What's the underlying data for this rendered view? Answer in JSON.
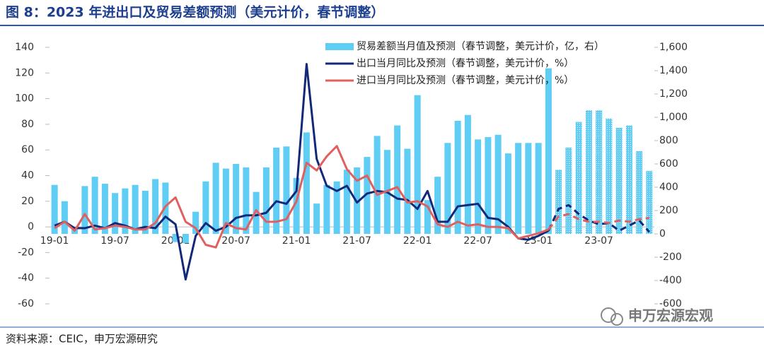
{
  "chart_data": {
    "type": "bar-line",
    "title": "图 8：2023 年进出口及贸易差额预测（美元计价，春节调整）",
    "source": "资料来源：CEIC，申万宏源研究",
    "watermark": "申万宏源宏观",
    "categories": [
      "19-01",
      null,
      null,
      null,
      null,
      null,
      "19-07",
      null,
      null,
      null,
      null,
      null,
      "20-01",
      null,
      null,
      null,
      null,
      null,
      "20-07",
      null,
      null,
      null,
      null,
      null,
      "21-01",
      null,
      null,
      null,
      null,
      null,
      "21-07",
      null,
      null,
      null,
      null,
      null,
      "22-01",
      null,
      null,
      null,
      null,
      null,
      "22-07",
      null,
      null,
      null,
      null,
      null,
      "23-01",
      null,
      null,
      null,
      null,
      null,
      "23-07",
      null,
      null,
      null,
      null,
      null
    ],
    "forecast_from_index": 49,
    "ylim": [
      -60,
      140
    ],
    "yticks": [
      -60,
      -40,
      -20,
      0,
      20,
      40,
      60,
      80,
      100,
      120,
      140
    ],
    "y2lim": [
      -600,
      1600
    ],
    "y2ticks": [
      -600,
      -400,
      -200,
      0,
      200,
      400,
      600,
      800,
      {
        "value": 1000,
        "label": "1,000"
      },
      {
        "value": 1200,
        "label": "1,200"
      },
      {
        "value": 1400,
        "label": "1,400"
      },
      {
        "value": 1600,
        "label": "1,600"
      }
    ],
    "series": [
      {
        "name": "贸易差额当月值及预测（春节调整，美元计价，亿，右）",
        "type": "bar",
        "axis": "y2",
        "color": "#5fcdf4",
        "values": [
          420,
          280,
          60,
          410,
          490,
          430,
          350,
          390,
          420,
          370,
          470,
          440,
          -70,
          -80,
          190,
          450,
          610,
          560,
          600,
          570,
          360,
          570,
          740,
          750,
          480,
          870,
          260,
          420,
          450,
          550,
          570,
          660,
          840,
          720,
          930,
          730,
          1190,
          290,
          490,
          780,
          970,
          1020,
          810,
          830,
          850,
          690,
          780,
          780,
          780,
          1420,
          550,
          740,
          960,
          1060,
          1060,
          990,
          910,
          930,
          710,
          540
        ]
      },
      {
        "name": "出口当月同比及预测（春节调整，美元计价，%）",
        "type": "line",
        "color": "#12297a",
        "values": [
          1,
          4,
          -1,
          -1,
          1,
          -1,
          3,
          1,
          -2,
          0,
          -1,
          8,
          2,
          -41,
          -7,
          3,
          -3,
          0,
          7,
          9,
          9,
          11,
          20,
          18,
          28,
          127,
          53,
          32,
          28,
          32,
          19,
          26,
          28,
          27,
          22,
          21,
          14,
          28,
          4,
          4,
          16,
          17,
          18,
          7,
          6,
          0,
          -9,
          -10,
          -7,
          -3,
          14,
          17,
          10,
          5,
          2,
          3,
          -3,
          1,
          5,
          -4
        ]
      },
      {
        "name": "进口当月同比及预测（春节调整，美元计价，%）",
        "type": "line",
        "color": "#e0605f",
        "values": [
          -1,
          4,
          -3,
          10,
          -2,
          -1,
          1,
          0,
          -2,
          -2,
          3,
          16,
          23,
          4,
          -1,
          -14,
          -16,
          3,
          -1,
          -2,
          13,
          4,
          4,
          6,
          20,
          50,
          44,
          55,
          63,
          45,
          36,
          40,
          25,
          28,
          31,
          19,
          20,
          16,
          2,
          0,
          4,
          1,
          2,
          0,
          0,
          -1,
          -9,
          -7,
          -5,
          -2,
          8,
          10,
          6,
          4,
          4,
          3,
          5,
          4,
          6,
          7
        ]
      }
    ]
  }
}
